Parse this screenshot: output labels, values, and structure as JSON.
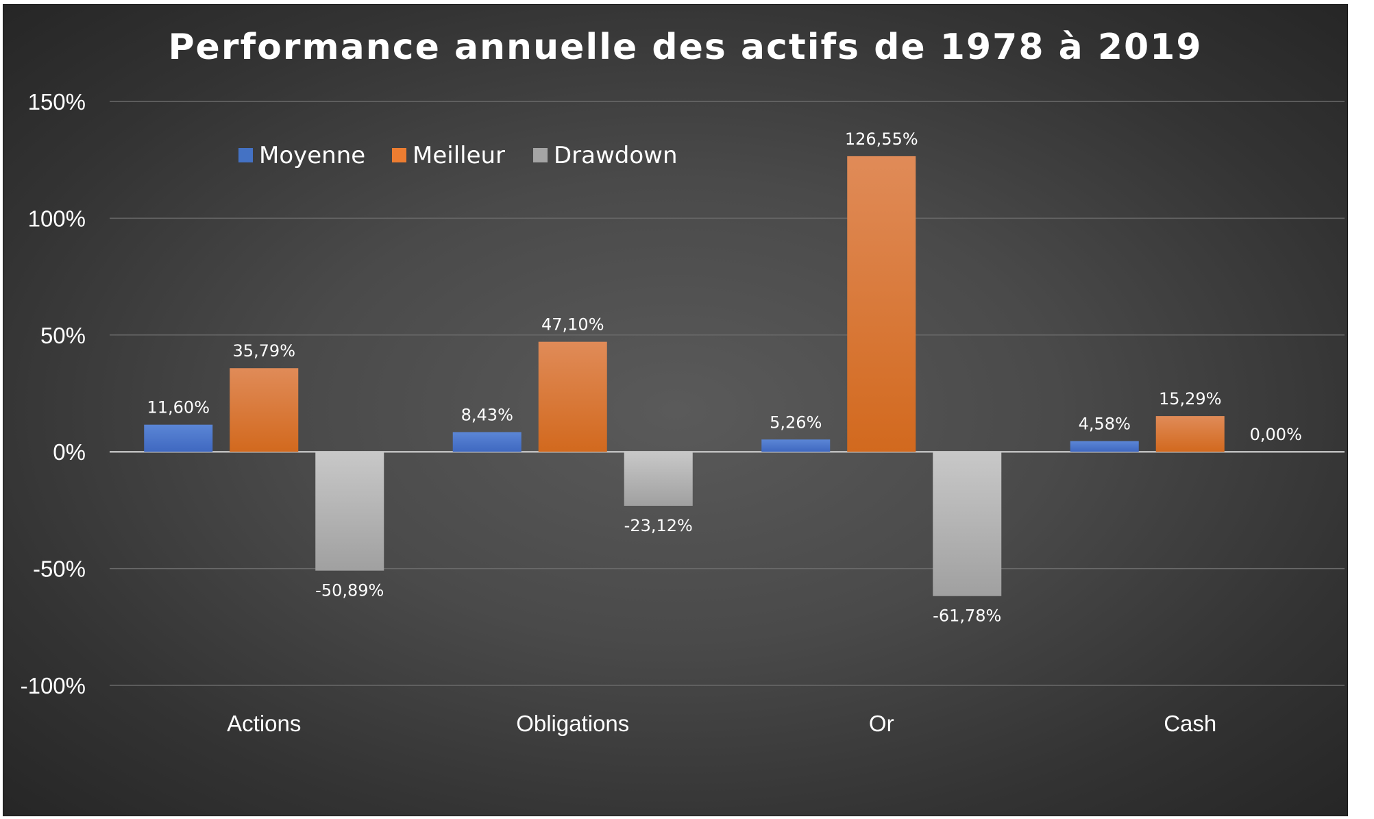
{
  "chart_data": {
    "type": "bar",
    "title": "Performance annuelle des actifs de 1978 à 2019",
    "xlabel": "",
    "ylabel": "",
    "categories": [
      "Actions",
      "Obligations",
      "Or",
      "Cash"
    ],
    "series": [
      {
        "name": "Moyenne",
        "color": "#4472C4",
        "values": [
          11.6,
          8.43,
          5.26,
          4.58
        ],
        "labels": [
          "11,60%",
          "8,43%",
          "5,26%",
          "4,58%"
        ]
      },
      {
        "name": "Meilleur",
        "color": "#ED7D31",
        "values": [
          35.79,
          47.1,
          126.55,
          15.29
        ],
        "labels": [
          "35,79%",
          "47,10%",
          "126,55%",
          "15,29%"
        ]
      },
      {
        "name": "Drawdown",
        "color": "#A5A5A5",
        "values": [
          -50.89,
          -23.12,
          -61.78,
          0.0
        ],
        "labels": [
          "-50,89%",
          "-23,12%",
          "-61,78%",
          "0,00%"
        ]
      }
    ],
    "ylim": [
      -100,
      150
    ],
    "yticks": [
      150,
      100,
      50,
      0,
      -50,
      -100
    ],
    "ytick_labels": [
      "150%",
      "100%",
      "50%",
      "0%",
      "-50%",
      "-100%"
    ],
    "grid": true,
    "legend_position": "top-left"
  }
}
